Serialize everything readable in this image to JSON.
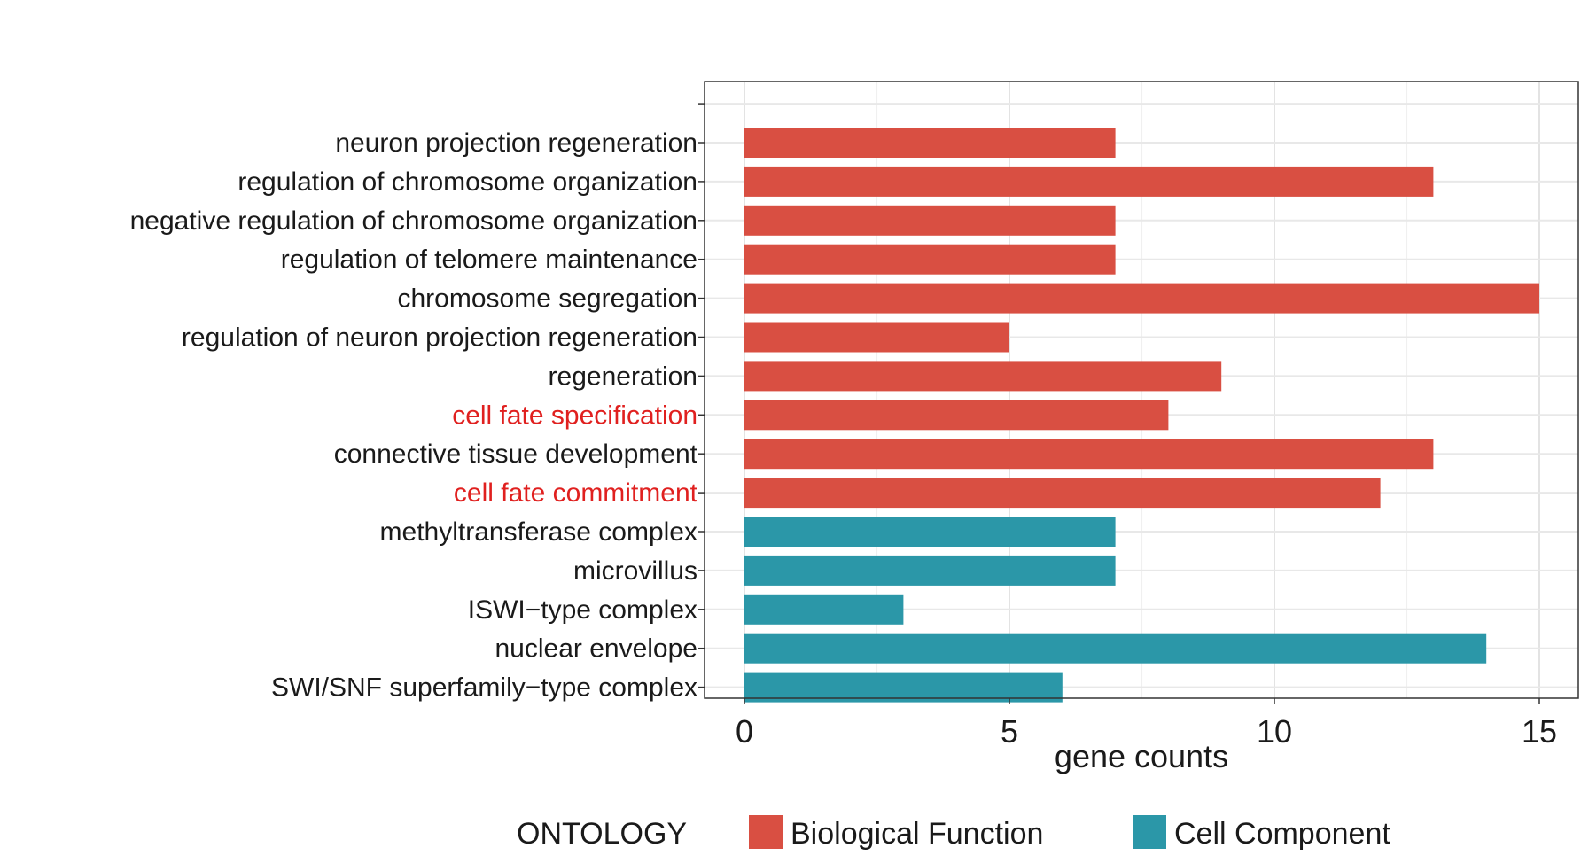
{
  "chart_data": {
    "type": "bar",
    "orientation": "horizontal",
    "title": "",
    "xlabel": "gene counts",
    "ylabel": "",
    "xlim": [
      0,
      15
    ],
    "x_ticks": [
      "0",
      "5",
      "10",
      "15"
    ],
    "grid": true,
    "categories": [
      "neuron projection regeneration",
      "regulation of chromosome organization",
      "negative regulation of chromosome organization",
      "regulation of telomere maintenance",
      "chromosome segregation",
      "regulation of neuron projection regeneration",
      "regeneration",
      "cell fate specification",
      "connective tissue development",
      "cell fate commitment",
      "methyltransferase complex",
      "microvillus",
      "ISWI−type complex",
      "nuclear envelope",
      "SWI/SNF superfamily−type complex"
    ],
    "values": [
      7,
      13,
      7,
      7,
      15,
      5,
      9,
      8,
      13,
      12,
      7,
      7,
      3,
      14,
      6
    ],
    "ontology": [
      "Biological Function",
      "Biological Function",
      "Biological Function",
      "Biological Function",
      "Biological Function",
      "Biological Function",
      "Biological Function",
      "Biological Function",
      "Biological Function",
      "Biological Function",
      "Cell Component",
      "Cell Component",
      "Cell Component",
      "Cell Component",
      "Cell Component"
    ],
    "highlighted_labels": [
      "cell fate specification",
      "cell fate commitment"
    ],
    "legend": {
      "title": "ONTOLOGY",
      "position": "bottom",
      "entries": [
        {
          "name": "Biological Function",
          "color": "#d94f42"
        },
        {
          "name": "Cell Component",
          "color": "#2b97a8"
        }
      ]
    },
    "colors": {
      "Biological Function": "#d94f42",
      "Cell Component": "#2b97a8",
      "highlight_label": "#e0201f"
    }
  }
}
